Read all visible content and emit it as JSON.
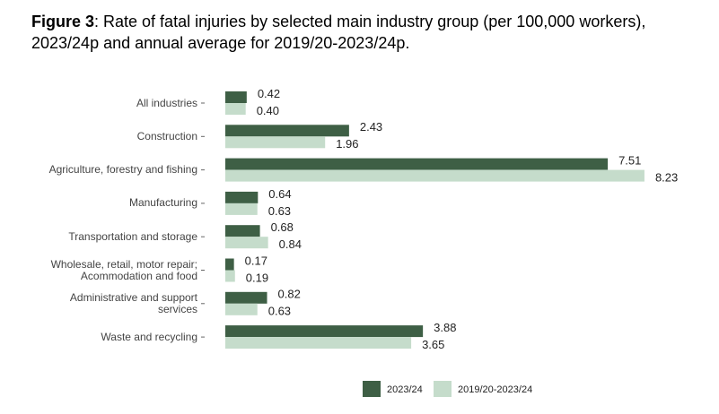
{
  "chart_data": {
    "type": "hbar",
    "title_label": "Figure 3",
    "title": ": Rate of fatal injuries by selected main industry group (per 100,000 workers), 2023/24p and annual average for 2019/20-2023/24p.",
    "categories": [
      "All industries",
      "Construction",
      "Agriculture, forestry and fishing",
      "Manufacturing",
      "Transportation and storage",
      "Wholesale, retail, motor repair; Acommodation and food",
      "Administrative and support services",
      "Waste and recycling"
    ],
    "series": [
      {
        "name": "2023/24",
        "color": "#3e5f45",
        "values": [
          0.42,
          2.43,
          7.51,
          0.64,
          0.68,
          0.17,
          0.82,
          3.88
        ],
        "value_labels": [
          "0.42",
          "2.43",
          "7.51",
          "0.64",
          "0.68",
          "0.17",
          "0.82",
          "3.88"
        ]
      },
      {
        "name": "2019/20-2023/24",
        "color": "#c5dccb",
        "values": [
          0.4,
          1.96,
          8.23,
          0.63,
          0.84,
          0.19,
          0.63,
          3.65
        ],
        "value_labels": [
          "0.40",
          "1.96",
          "8.23",
          "0.63",
          "0.84",
          "0.19",
          "0.63",
          "3.65"
        ]
      }
    ],
    "xlim": [
      0,
      9.5
    ],
    "legend": "bottom"
  }
}
